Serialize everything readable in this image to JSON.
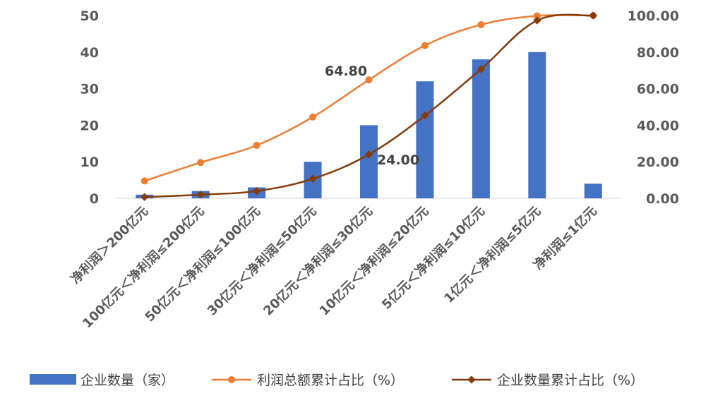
{
  "chart_data": {
    "type": "bar",
    "categories": [
      "净利润＞200亿元",
      "100亿元＜净利润≤200亿元",
      "50亿元＜净利润≤100亿元",
      "30亿元＜净利润≤50亿元",
      "20亿元＜净利润≤30亿元",
      "10亿元＜净利润≤20亿元",
      "5亿元＜净利润≤10亿元",
      "1亿元＜净利润≤5亿元",
      "净利润≤1亿元"
    ],
    "series": [
      {
        "name": "企业数量（家）",
        "kind": "bar",
        "axis": "left",
        "color": "#4472C4",
        "values": [
          1,
          2,
          3,
          10,
          20,
          32,
          38,
          40,
          4
        ]
      },
      {
        "name": "利润总额累计占比（%）",
        "kind": "line",
        "axis": "right",
        "marker": "circle",
        "color": "#ED7D31",
        "values": [
          9.5,
          19.6,
          29.0,
          44.5,
          64.8,
          83.6,
          95.0,
          99.8,
          100.0
        ]
      },
      {
        "name": "企业数量累计占比（%）",
        "kind": "line",
        "axis": "right",
        "marker": "diamond",
        "color": "#843C0C",
        "values": [
          0.7,
          2.0,
          4.0,
          10.7,
          24.0,
          45.3,
          70.7,
          97.3,
          100.0
        ]
      }
    ],
    "y_left": {
      "min": 0,
      "max": 50,
      "ticks": [
        "0",
        "10",
        "20",
        "30",
        "40",
        "50"
      ]
    },
    "y_right": {
      "min": 0,
      "max": 100,
      "ticks": [
        "0.00",
        "20.00",
        "40.00",
        "60.00",
        "80.00",
        "100.00"
      ]
    },
    "annotations": [
      "64.80",
      "24.00"
    ],
    "grid": false,
    "legend_position": "bottom"
  }
}
